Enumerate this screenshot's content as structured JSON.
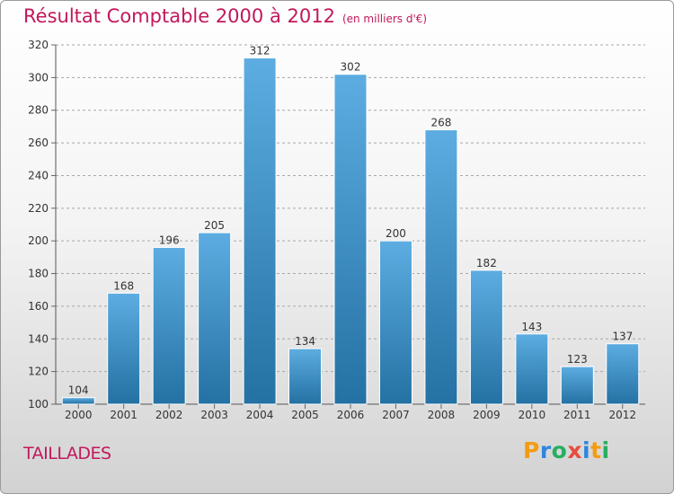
{
  "header": {
    "title": "Résultat Comptable 2000 à 2012",
    "unit": "(en milliers d'€)"
  },
  "commune": "TAILLADES",
  "brand": {
    "name": "Proxiti",
    "letters": [
      {
        "char": "P",
        "color": "#f39c12"
      },
      {
        "char": "r",
        "color": "#2e86de"
      },
      {
        "char": "o",
        "color": "#27ae60"
      },
      {
        "char": "x",
        "color": "#e74c3c"
      },
      {
        "char": "i",
        "color": "#2e86de"
      },
      {
        "char": "t",
        "color": "#f39c12"
      },
      {
        "char": "i",
        "color": "#27ae60"
      }
    ]
  },
  "colors": {
    "bar_top": "#5dade2",
    "bar_bottom": "#2471a3",
    "accent": "#c2185b"
  },
  "chart_data": {
    "type": "bar",
    "title": "Résultat Comptable 2000 à 2012",
    "xlabel": "",
    "ylabel": "",
    "categories": [
      "2000",
      "2001",
      "2002",
      "2003",
      "2004",
      "2005",
      "2006",
      "2007",
      "2008",
      "2009",
      "2010",
      "2011",
      "2012"
    ],
    "values": [
      104,
      168,
      196,
      205,
      312,
      134,
      302,
      200,
      268,
      182,
      143,
      123,
      137
    ],
    "ylim": [
      100,
      320
    ],
    "yticks": [
      100,
      120,
      140,
      160,
      180,
      200,
      220,
      240,
      260,
      280,
      300,
      320
    ],
    "grid": "horizontal-dashed"
  }
}
